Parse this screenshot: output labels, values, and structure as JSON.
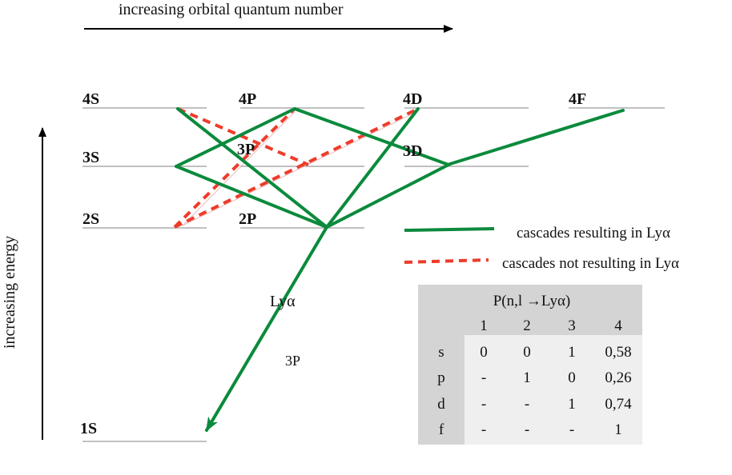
{
  "axes": {
    "x_label": "increasing orbital quantum number",
    "y_label": "increasing energy"
  },
  "levels": [
    {
      "id": "4S",
      "label": "4S"
    },
    {
      "id": "4P",
      "label": "4P"
    },
    {
      "id": "4D",
      "label": "4D"
    },
    {
      "id": "4F",
      "label": "4F"
    },
    {
      "id": "3S",
      "label": "3S"
    },
    {
      "id": "3P",
      "label": "3P"
    },
    {
      "id": "3D",
      "label": "3D"
    },
    {
      "id": "2S",
      "label": "2S"
    },
    {
      "id": "2P",
      "label": "2P"
    },
    {
      "id": "1S",
      "label": "1S"
    }
  ],
  "transitions": {
    "lya_label": "Lyα",
    "extra_label": "3P",
    "resulting_lya": [
      [
        "4S",
        "3P"
      ],
      [
        "4P",
        "3S"
      ],
      [
        "4P",
        "3D"
      ],
      [
        "4D",
        "2P"
      ],
      [
        "4F",
        "3D"
      ],
      [
        "3S",
        "2P"
      ],
      [
        "3P",
        "1S"
      ],
      [
        "3D",
        "2P"
      ],
      [
        "2P",
        "1S"
      ]
    ],
    "not_resulting_lya": [
      [
        "4S",
        "3D"
      ],
      [
        "4P",
        "2S"
      ],
      [
        "4D",
        "2S"
      ]
    ]
  },
  "legend": {
    "green_label": "cascades resulting in Lyα",
    "red_label": "cascades not resulting in Lyα",
    "green_color": "#0b8a3c",
    "red_color": "#ee3b2a"
  },
  "table": {
    "title": "P(n,l →Lyα)",
    "columns": [
      "1",
      "2",
      "3",
      "4"
    ],
    "rows": [
      {
        "label": "s",
        "values": [
          "0",
          "0",
          "1",
          "0,58"
        ]
      },
      {
        "label": "p",
        "values": [
          "-",
          "1",
          "0",
          "0,26"
        ]
      },
      {
        "label": "d",
        "values": [
          "-",
          "-",
          "1",
          "0,74"
        ]
      },
      {
        "label": "f",
        "values": [
          "-",
          "-",
          "-",
          "1"
        ]
      }
    ]
  }
}
